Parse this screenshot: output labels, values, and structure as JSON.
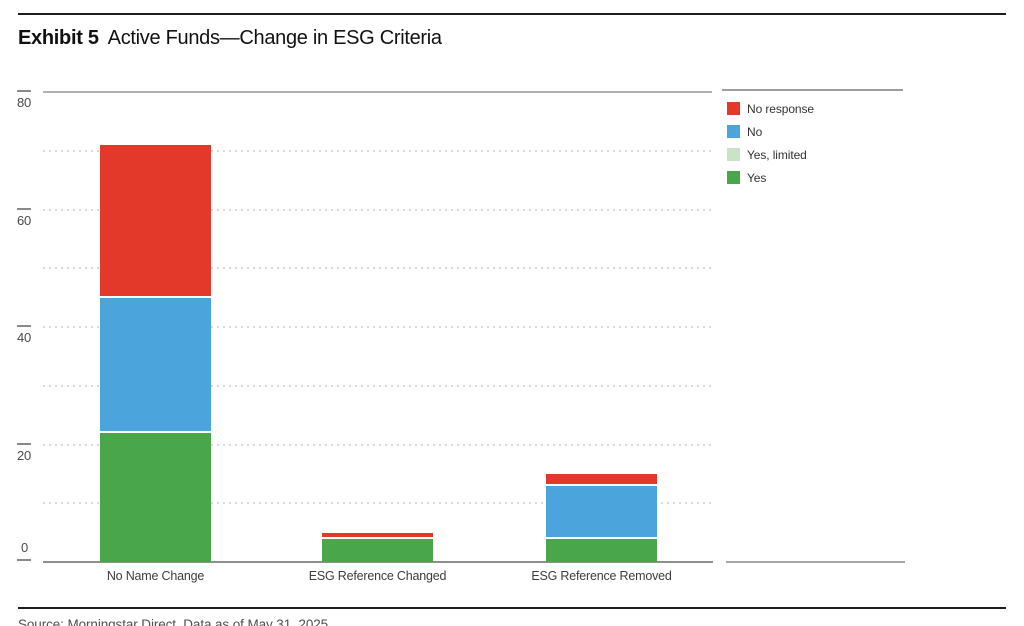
{
  "title": {
    "exhibit": "Exhibit 5",
    "text": "Active Funds—Change in ESG Criteria"
  },
  "source": {
    "text": "Source: Morningstar Direct. Data as of May 31, 2025"
  },
  "colors": {
    "Yes": "#49A64A",
    "Yes, limited": "#C8E3C6",
    "No": "#4BA4DB",
    "No response": "#E2392B",
    "axis_line": "#8f8f8f",
    "top_line": "#b0b0b0",
    "gridline": "#d9d9d9",
    "legend_rule": "#9e9e9e",
    "right_panel_line": "#a6a6a6"
  },
  "chart_data": {
    "type": "bar",
    "stacked": true,
    "title": "Active Funds—Change in ESG Criteria",
    "categories": [
      "No Name Change",
      "ESG Reference Changed",
      "ESG Reference Removed"
    ],
    "series": [
      {
        "name": "Yes",
        "values": [
          22,
          4,
          4
        ]
      },
      {
        "name": "Yes, limited",
        "values": [
          0,
          0,
          0
        ]
      },
      {
        "name": "No",
        "values": [
          23,
          0,
          9
        ]
      },
      {
        "name": "No response",
        "values": [
          26,
          1,
          2
        ]
      }
    ],
    "totals": [
      71,
      5,
      15
    ],
    "xlabel": "",
    "ylabel": "",
    "ylim": [
      0,
      80
    ],
    "yticks": [
      0,
      20,
      40,
      60,
      80
    ],
    "gridline_values": [
      10,
      20,
      30,
      40,
      50,
      60,
      70
    ],
    "grid": "dotted horizontal",
    "legend_position": "top-right",
    "legend_order": [
      "No response",
      "No",
      "Yes, limited",
      "Yes"
    ]
  }
}
